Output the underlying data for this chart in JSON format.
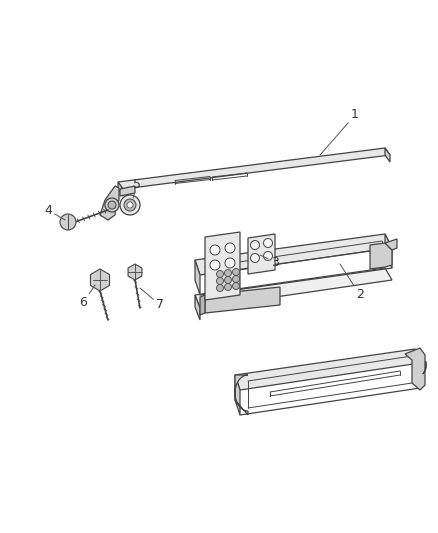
{
  "bg_color": "#ffffff",
  "line_color": "#444444",
  "lw": 0.9,
  "fig_width": 4.38,
  "fig_height": 5.33,
  "dpi": 100
}
